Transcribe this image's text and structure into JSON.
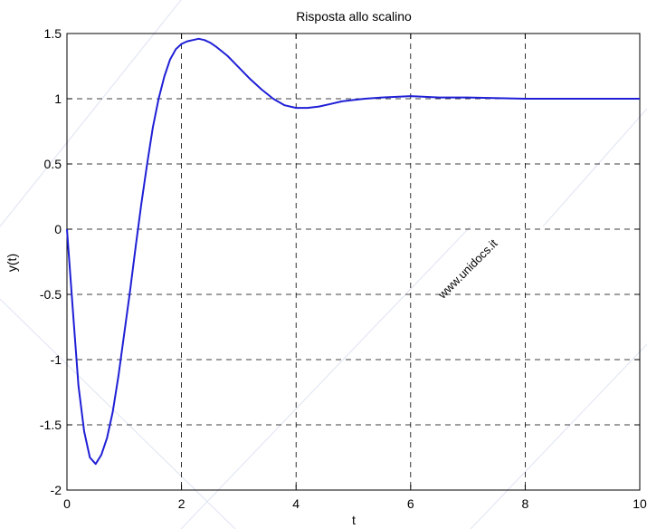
{
  "chart_data": {
    "type": "line",
    "title": "Risposta allo scalino",
    "xlabel": "t",
    "ylabel": "y(t)",
    "xlim": [
      0,
      10
    ],
    "ylim": [
      -2,
      1.5
    ],
    "xticks": [
      0,
      2,
      4,
      6,
      8,
      10
    ],
    "xtick_labels": [
      "0",
      "2",
      "4",
      "6",
      "8",
      "10"
    ],
    "yticks": [
      -2,
      -1.5,
      -1,
      -0.5,
      0,
      0.5,
      1,
      1.5
    ],
    "ytick_labels": [
      "-2",
      "-1.5",
      "-1",
      "-0.5",
      "0",
      "0.5",
      "1",
      "1.5"
    ],
    "grid": true,
    "series": [
      {
        "color": "#1f1fd6",
        "x": [
          0,
          0.1,
          0.2,
          0.3,
          0.4,
          0.5,
          0.6,
          0.7,
          0.8,
          0.9,
          1.0,
          1.1,
          1.2,
          1.3,
          1.4,
          1.5,
          1.6,
          1.7,
          1.8,
          1.9,
          2.0,
          2.1,
          2.2,
          2.3,
          2.4,
          2.5,
          2.6,
          2.8,
          3.0,
          3.2,
          3.4,
          3.6,
          3.8,
          4.0,
          4.2,
          4.4,
          4.6,
          4.8,
          5.0,
          5.2,
          5.5,
          6.0,
          6.5,
          7.0,
          8.0,
          9.0,
          10.0
        ],
        "y": [
          0,
          -0.6,
          -1.2,
          -1.55,
          -1.75,
          -1.8,
          -1.73,
          -1.6,
          -1.4,
          -1.12,
          -0.8,
          -0.48,
          -0.13,
          0.2,
          0.5,
          0.78,
          1.0,
          1.17,
          1.3,
          1.38,
          1.42,
          1.44,
          1.45,
          1.46,
          1.45,
          1.43,
          1.4,
          1.33,
          1.24,
          1.15,
          1.07,
          1.0,
          0.95,
          0.93,
          0.93,
          0.94,
          0.96,
          0.98,
          0.99,
          1.0,
          1.01,
          1.02,
          1.01,
          1.01,
          1.0,
          1.0,
          1.0
        ]
      }
    ]
  },
  "watermark": "www.unidocs.it"
}
